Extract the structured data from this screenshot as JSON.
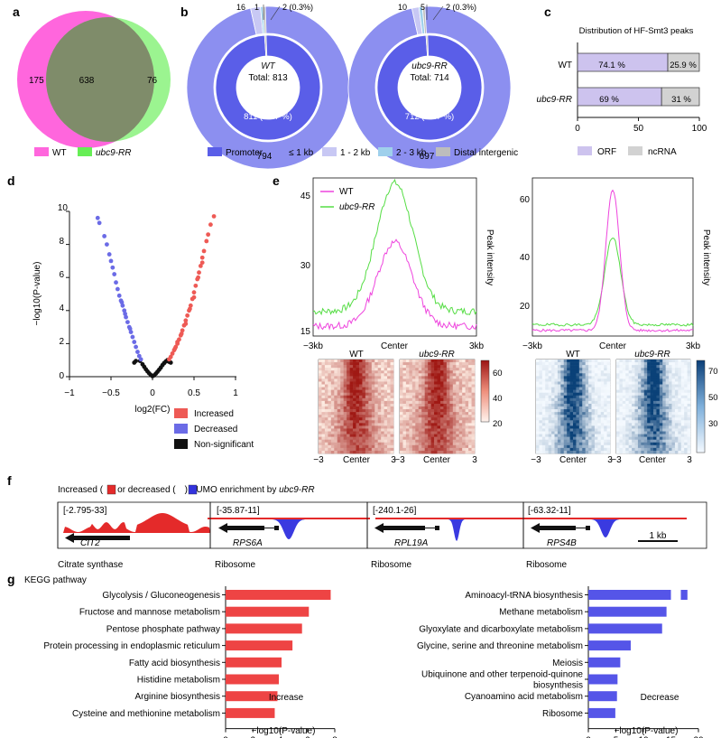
{
  "panels": {
    "a": {
      "letter": "a",
      "counts": [
        "175",
        "638",
        "76"
      ],
      "legend": [
        "WT",
        "ubc9-RR"
      ],
      "colors": [
        "#ff66dd",
        "#66ee55"
      ]
    },
    "b": {
      "letter": "b",
      "donuts": [
        {
          "name": "WT",
          "total": "Total: 813",
          "inner_label": "811 (99.7 %)",
          "outer_count": "794",
          "small_labels": [
            "16",
            "1",
            "2 (0.3%)"
          ],
          "inner": [
            811,
            2
          ],
          "outer": [
            794,
            16,
            1,
            2
          ]
        },
        {
          "name": "ubc9-RR",
          "total": "Total: 714",
          "inner_label": "712 (99.7 %)",
          "outer_count": "697",
          "small_labels": [
            "10",
            "5",
            "2 (0.3%)"
          ],
          "inner": [
            712,
            2
          ],
          "outer": [
            697,
            10,
            5,
            2
          ]
        }
      ],
      "legend": [
        {
          "label": "Promoter",
          "color": "#5a5ee8"
        },
        {
          "label": "≤ 1 kb",
          "color": "#8c8ff0"
        },
        {
          "label": "1 - 2 kb",
          "color": "#c8c8f4"
        },
        {
          "label": "2 - 3 kb",
          "color": "#9fd0ec"
        },
        {
          "label": "Distal intergenic",
          "color": "#bdbdbd"
        }
      ]
    },
    "c": {
      "letter": "c",
      "chart_data": {
        "type": "bar",
        "title": "Distribution of HF-Smt3 peaks",
        "categories": [
          "WT",
          "ubc9-RR"
        ],
        "series": [
          {
            "name": "ORF",
            "values": [
              74.1,
              69
            ],
            "labels": [
              "74.1 %",
              "69 %"
            ],
            "color": "#cdc3ee"
          },
          {
            "name": "ncRNA",
            "values": [
              25.9,
              31
            ],
            "labels": [
              "25.9 %",
              "31 %"
            ],
            "color": "#d2d2d2"
          }
        ],
        "xlim": [
          0,
          100
        ],
        "xticks": [
          "0",
          "50",
          "100"
        ]
      }
    },
    "d": {
      "letter": "d",
      "chart_data": {
        "type": "scatter",
        "xlabel": "log2(FC)",
        "ylabel": "−log10(P-value)",
        "xlim": [
          -1,
          1
        ],
        "ylim": [
          0,
          10
        ],
        "xticks": [
          "−1",
          "−0.5",
          "0",
          "0.5",
          "1"
        ],
        "yticks": [
          "0",
          "2",
          "4",
          "6",
          "8",
          "10"
        ],
        "legend": [
          {
            "label": "Increased",
            "color": "#ee5a55"
          },
          {
            "label": "Decreased",
            "color": "#6b6be6"
          },
          {
            "label": "Non-significant",
            "color": "#111111"
          }
        ],
        "decreased": [
          [
            -0.66,
            9.6
          ],
          [
            -0.64,
            9.3
          ],
          [
            -0.58,
            8.5
          ],
          [
            -0.55,
            8.0
          ],
          [
            -0.52,
            7.4
          ],
          [
            -0.5,
            7.0
          ],
          [
            -0.48,
            6.6
          ],
          [
            -0.46,
            6.2
          ],
          [
            -0.44,
            5.7
          ],
          [
            -0.42,
            5.3
          ],
          [
            -0.4,
            4.9
          ],
          [
            -0.38,
            4.6
          ],
          [
            -0.36,
            4.3
          ],
          [
            -0.34,
            4.0
          ],
          [
            -0.32,
            3.6
          ],
          [
            -0.3,
            3.3
          ],
          [
            -0.28,
            3.0
          ],
          [
            -0.26,
            2.7
          ],
          [
            -0.24,
            2.4
          ],
          [
            -0.22,
            2.1
          ],
          [
            -0.2,
            1.8
          ],
          [
            -0.18,
            1.5
          ],
          [
            -0.16,
            1.25
          ],
          [
            -0.14,
            1.05
          ],
          [
            -0.37,
            4.5
          ],
          [
            -0.33,
            3.8
          ],
          [
            -0.27,
            2.9
          ]
        ],
        "increased": [
          [
            0.74,
            9.7
          ],
          [
            0.7,
            9.2
          ],
          [
            0.67,
            8.6
          ],
          [
            0.65,
            8.2
          ],
          [
            0.62,
            7.6
          ],
          [
            0.6,
            7.2
          ],
          [
            0.58,
            6.7
          ],
          [
            0.56,
            6.3
          ],
          [
            0.54,
            5.9
          ],
          [
            0.52,
            5.5
          ],
          [
            0.5,
            5.1
          ],
          [
            0.48,
            4.7
          ],
          [
            0.46,
            4.3
          ],
          [
            0.44,
            4.0
          ],
          [
            0.42,
            3.7
          ],
          [
            0.4,
            3.4
          ],
          [
            0.38,
            3.1
          ],
          [
            0.36,
            2.8
          ],
          [
            0.34,
            2.5
          ],
          [
            0.32,
            2.25
          ],
          [
            0.3,
            2.0
          ],
          [
            0.28,
            1.8
          ],
          [
            0.26,
            1.6
          ],
          [
            0.24,
            1.4
          ],
          [
            0.22,
            1.2
          ],
          [
            0.2,
            1.05
          ],
          [
            0.55,
            6.0
          ],
          [
            0.6,
            6.9
          ],
          [
            0.5,
            4.8
          ],
          [
            0.45,
            4.1
          ],
          [
            0.4,
            3.2
          ],
          [
            0.35,
            2.6
          ],
          [
            0.3,
            2.1
          ],
          [
            0.27,
            1.7
          ]
        ],
        "nonsig": [
          [
            -0.15,
            0.95
          ],
          [
            -0.12,
            0.75
          ],
          [
            -0.1,
            0.6
          ],
          [
            -0.08,
            0.45
          ],
          [
            -0.06,
            0.32
          ],
          [
            -0.04,
            0.2
          ],
          [
            -0.02,
            0.1
          ],
          [
            0,
            0.03
          ],
          [
            0.02,
            0.08
          ],
          [
            0.04,
            0.18
          ],
          [
            0.06,
            0.3
          ],
          [
            0.08,
            0.42
          ],
          [
            0.1,
            0.55
          ],
          [
            0.12,
            0.7
          ],
          [
            0.14,
            0.82
          ],
          [
            0.16,
            0.92
          ],
          [
            0.18,
            1.0
          ],
          [
            -0.2,
            0.95
          ],
          [
            -0.22,
            0.85
          ],
          [
            0.2,
            0.9
          ],
          [
            0.22,
            0.85
          ]
        ]
      }
    },
    "e": {
      "letter": "e",
      "ylabel": "Peak intensity",
      "x_ticks": [
        "−3kb",
        "Center",
        "3kb"
      ],
      "legend": [
        {
          "label": "WT",
          "color": "#ee44dd"
        },
        {
          "label": "ubc9-RR",
          "color": "#55dd44"
        }
      ],
      "left_plot": {
        "yticks": [
          "15",
          "30",
          "45"
        ],
        "ylim": [
          15,
          47
        ]
      },
      "right_plot": {
        "yticks": [
          "20",
          "40",
          "60"
        ],
        "ylim": [
          12,
          68
        ]
      },
      "heat_left": {
        "titles": [
          "WT",
          "ubc9-RR"
        ],
        "colorbar": [
          "60",
          "40",
          "20"
        ],
        "x_ticks": [
          "−3",
          "Center",
          "3"
        ]
      },
      "heat_right": {
        "titles": [
          "WT",
          "ubc9-RR"
        ],
        "colorbar": [
          "70",
          "50",
          "30"
        ],
        "x_ticks": [
          "−3",
          "Center",
          "3"
        ]
      }
    },
    "f": {
      "letter": "f",
      "title_prefix": "Increased (",
      "title_middle": ") or decreased (",
      "title_suffix": ") SUMO enrichment by ",
      "title_strain": "ubc9-RR",
      "tracks": [
        {
          "range": "[-2.795-33]",
          "gene": "CIT2",
          "category": "Citrate synthase"
        },
        {
          "range": "[-35.87-11]",
          "gene": "RPS6A",
          "category": "Ribosome"
        },
        {
          "range": "[-240.1-26]",
          "gene": "RPL19A",
          "category": "Ribosome"
        },
        {
          "range": "[-63.32-11]",
          "gene": "RPS4B",
          "category": "Ribosome"
        }
      ],
      "scale": "1 kb"
    },
    "g": {
      "letter": "g",
      "title": "KEGG pathway",
      "left": {
        "chart_data": {
          "type": "bar",
          "categories": [
            "Glycolysis / Gluconeogenesis",
            "Fructose and mannose metabolism",
            "Pentose phosphate pathway",
            "Protein processing in endoplasmic reticulum",
            "Fatty acid biosynthesis",
            "Histidine metabolism",
            "Arginine biosynthesis",
            "Cysteine and methionine metabolism"
          ],
          "values": [
            7.7,
            6.1,
            5.6,
            4.9,
            4.1,
            3.9,
            3.8,
            3.6
          ],
          "xlim": [
            0,
            8
          ],
          "xticks": [
            "0",
            "2",
            "4",
            "6",
            "8"
          ],
          "xlabel": "−log10(P-value)",
          "tag": "Increase",
          "color": "#ee4444"
        }
      },
      "right": {
        "chart_data": {
          "type": "bar",
          "categories": [
            "Aminoacyl-tRNA biosynthesis",
            "Methane metabolism",
            "Glyoxylate and dicarboxylate metabolism",
            "Glycine, serine and threonine metabolism",
            "Meiosis",
            "Ubiquinone and other terpenoid-quinone biosynthesis",
            "Cyanoamino acid metabolism",
            "Ribosome"
          ],
          "values": [
            17.5,
            14.2,
            13.4,
            7.7,
            5.8,
            5.3,
            5.2,
            4.9
          ],
          "xlim": [
            0,
            20
          ],
          "xticks": [
            "0",
            "5",
            "10",
            "15",
            "20"
          ],
          "xlabel": "−log10(P-value)",
          "tag": "Decrease",
          "color": "#5555e8"
        }
      }
    }
  }
}
